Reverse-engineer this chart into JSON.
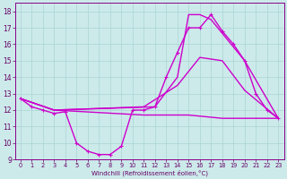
{
  "xlabel": "Windchill (Refroidissement éolien,°C)",
  "xlim": [
    -0.5,
    23.5
  ],
  "ylim": [
    9,
    18.5
  ],
  "yticks": [
    9,
    10,
    11,
    12,
    13,
    14,
    15,
    16,
    17,
    18
  ],
  "xticks": [
    0,
    1,
    2,
    3,
    4,
    5,
    6,
    7,
    8,
    9,
    10,
    11,
    12,
    13,
    14,
    15,
    16,
    17,
    18,
    19,
    20,
    21,
    22,
    23
  ],
  "background_color": "#cceaea",
  "grid_color": "#aad4d4",
  "line_color": "#cc00cc",
  "line_color2": "#990099",
  "line_width": 1.0,
  "zigzag_x": [
    0,
    1,
    2,
    3,
    4,
    5,
    6,
    7,
    8,
    9,
    10,
    11,
    12,
    13,
    14,
    15,
    16,
    17,
    18,
    19,
    20,
    21,
    22,
    23
  ],
  "zigzag_y": [
    12.7,
    12.2,
    12.0,
    11.8,
    11.9,
    10.0,
    9.5,
    9.3,
    9.3,
    9.8,
    12.0,
    12.0,
    12.2,
    14.0,
    15.5,
    17.0,
    17.0,
    17.8,
    16.8,
    16.0,
    15.0,
    13.0,
    12.0,
    11.5
  ],
  "line2_x": [
    0,
    3,
    12,
    14,
    15,
    16,
    17,
    20,
    23
  ],
  "line2_y": [
    12.7,
    12.0,
    12.2,
    14.0,
    17.8,
    17.8,
    17.5,
    15.0,
    11.5
  ],
  "line3_x": [
    0,
    3,
    11,
    14,
    16,
    18,
    20,
    23
  ],
  "line3_y": [
    12.7,
    12.0,
    12.2,
    13.5,
    15.2,
    15.0,
    13.2,
    11.5
  ],
  "line4_x": [
    0,
    3,
    11,
    14,
    15,
    18,
    20,
    23
  ],
  "line4_y": [
    12.7,
    12.0,
    11.7,
    11.7,
    11.7,
    11.5,
    11.5,
    11.5
  ]
}
